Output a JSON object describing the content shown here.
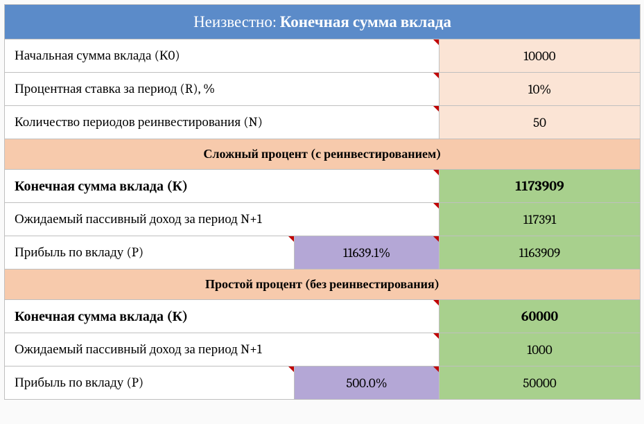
{
  "header": {
    "prefix": "Неизвестно: ",
    "title": "Конечная сумма вклада"
  },
  "inputs": {
    "initial": {
      "label": "Начальная сумма вклада (К0)",
      "value": "10000"
    },
    "rate": {
      "label": "Процентная ставка за период (R), %",
      "value": "10%"
    },
    "periods": {
      "label": "Количество периодов реинвестирования (N)",
      "value": "50"
    }
  },
  "compound": {
    "section": "Сложный процент (с реинвестированием)",
    "final": {
      "label": "Конечная сумма вклада (К)",
      "value": "1173909"
    },
    "passive": {
      "label": "Ожидаемый пассивный доход за период N+1",
      "value": "117391"
    },
    "profit": {
      "label": "Прибыль по вкладу (P)",
      "pct": "11639.1%",
      "value": "1163909"
    }
  },
  "simple": {
    "section": "Простой процент (без реинвестирования)",
    "final": {
      "label": "Конечная сумма вклада (К)",
      "value": "60000"
    },
    "passive": {
      "label": "Ожидаемый пассивный доход за период N+1",
      "value": "1000"
    },
    "profit": {
      "label": "Прибыль по вкладу (P)",
      "pct": "500.0%",
      "value": "50000"
    }
  }
}
